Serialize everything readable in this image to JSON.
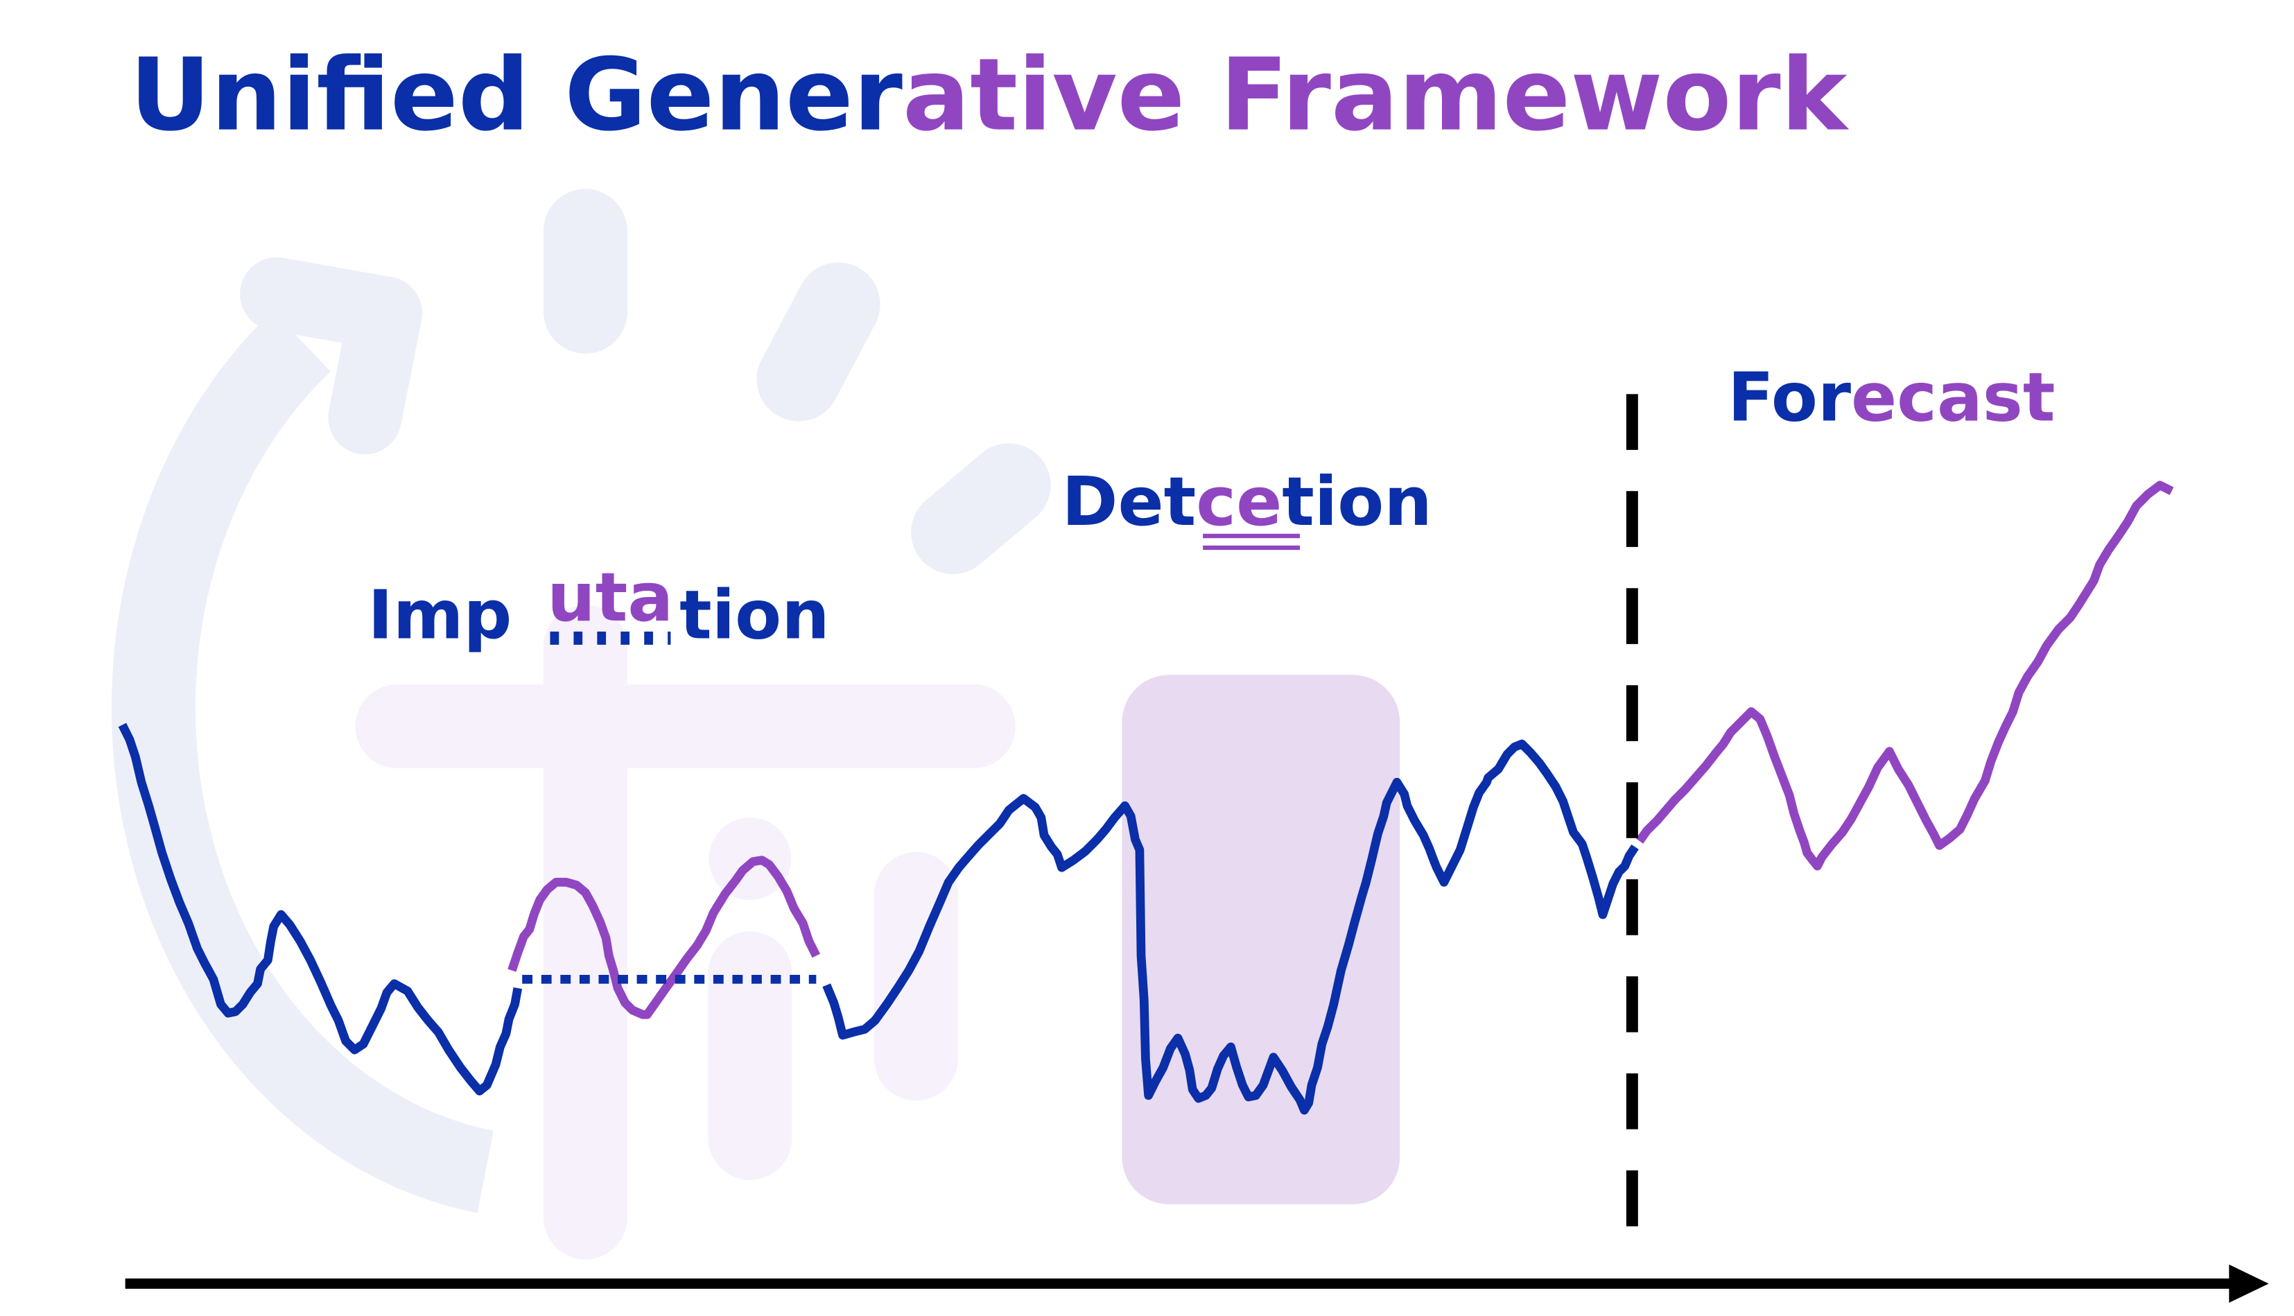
{
  "title": {
    "part_blue": "Unified Gener",
    "part_purple": "ative Framework"
  },
  "labels": {
    "imputation": {
      "a": "Imp",
      "b": "uta",
      "c": " tion"
    },
    "detection": {
      "a": "Det",
      "b": "ce",
      "c": "tion"
    },
    "forecast": {
      "a": "For",
      "b": "ecast"
    }
  },
  "colors": {
    "blue": "#0A2FA8",
    "purple": "#9146C1",
    "light_gray_blue": "#ECEFF7",
    "light_lavender": "#F6F1FB",
    "detection_box": "#E8DAF0",
    "axis": "#000000"
  },
  "icons": [
    "refresh-arc-icon",
    "loading-spinner-icon",
    "time-axis-arrow"
  ]
}
